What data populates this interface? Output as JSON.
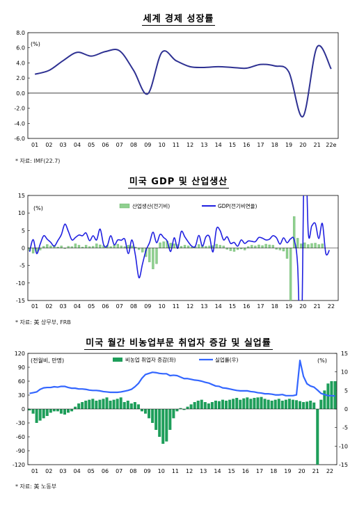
{
  "charts": [
    {
      "title": "세계 경제 성장률",
      "source": "* 자료: IMF(22.7)",
      "unit": "(%)"
    },
    {
      "title": "미국 GDP 및 산업생산",
      "source": "* 자료: 美 상무부, FRB",
      "unit": "(%)"
    },
    {
      "title": "미국 월간 비농업부문 취업자 증감 및 실업률",
      "source": "* 자료: 美 노동부",
      "unit_left": "(전월비, 만명)",
      "unit_right": "(%)"
    }
  ],
  "chart_data": [
    {
      "type": "line",
      "title": "세계 경제 성장률",
      "x": [
        "01",
        "02",
        "03",
        "04",
        "05",
        "06",
        "07",
        "08",
        "09",
        "10",
        "11",
        "12",
        "13",
        "14",
        "15",
        "16",
        "17",
        "18",
        "19",
        "20",
        "21",
        "22e"
      ],
      "series": [
        {
          "name": "",
          "color": "#2e3192",
          "values": [
            2.5,
            3.0,
            4.3,
            5.4,
            4.9,
            5.5,
            5.6,
            3.0,
            -0.1,
            5.4,
            4.3,
            3.5,
            3.4,
            3.5,
            3.4,
            3.3,
            3.8,
            3.6,
            2.8,
            -3.1,
            6.1,
            3.2
          ]
        }
      ],
      "ylim": [
        -6.0,
        8.0
      ],
      "yticks": [
        "8.0",
        "6.0",
        "4.0",
        "2.0",
        "0.0",
        "-2.0",
        "-4.0",
        "-6.0"
      ],
      "grid": false,
      "legend": "none"
    },
    {
      "type": "bar+line",
      "title": "미국 GDP 및 산업생산",
      "x_labels": [
        "01",
        "02",
        "03",
        "04",
        "05",
        "06",
        "07",
        "08",
        "09",
        "10",
        "11",
        "12",
        "13",
        "14",
        "15",
        "16",
        "17",
        "18",
        "19",
        "20",
        "21",
        "22"
      ],
      "ylim": [
        -15,
        15
      ],
      "yticks": [
        "15",
        "10",
        "5",
        "0",
        "-5",
        "-10",
        "-15"
      ],
      "legend": "top-center",
      "series": [
        {
          "name": "산업생산(전기비)",
          "kind": "bar",
          "color": "#8fd08f",
          "values": [
            -0.8,
            -1.5,
            -1.2,
            -0.6,
            0.5,
            1.0,
            0.6,
            0.8,
            0.3,
            0.6,
            -0.2,
            0.5,
            0.4,
            1.2,
            0.8,
            0.3,
            0.8,
            0.4,
            0.5,
            1.2,
            0.9,
            0.7,
            0.8,
            0.4,
            0.9,
            1.1,
            0.6,
            0.4,
            0.8,
            0.6,
            0.3,
            -0.5,
            -1.2,
            -2.5,
            -4.0,
            -6.0,
            -4.5,
            1.5,
            1.8,
            2.0,
            1.4,
            1.2,
            1.0,
            0.5,
            0.8,
            0.6,
            0.3,
            0.4,
            1.0,
            0.8,
            0.5,
            0.6,
            0.7,
            1.1,
            0.8,
            0.6,
            -0.4,
            -0.8,
            -1.0,
            -0.5,
            -0.3,
            -0.6,
            0.4,
            0.8,
            0.6,
            0.9,
            0.7,
            1.1,
            0.9,
            0.8,
            -0.4,
            -0.6,
            -0.9,
            -3.0,
            -15.0,
            9.0,
            2.8,
            1.2,
            1.5,
            1.0,
            1.3,
            1.4,
            1.0,
            1.2
          ],
          "x_start": 2001.0,
          "x_step": 0.25
        },
        {
          "name": "GDP(전기비연율)",
          "kind": "line",
          "color": "#1f1fe0",
          "values": [
            -1.1,
            2.4,
            -1.6,
            1.1,
            3.5,
            2.5,
            1.6,
            0.5,
            2.1,
            3.8,
            6.8,
            4.7,
            2.3,
            3.0,
            3.7,
            3.5,
            4.3,
            2.1,
            3.5,
            2.3,
            5.4,
            0.9,
            0.6,
            3.5,
            0.9,
            2.3,
            2.2,
            2.5,
            -1.6,
            2.3,
            -2.1,
            -8.5,
            -4.6,
            -0.7,
            1.5,
            4.5,
            1.5,
            3.9,
            3.0,
            2.0,
            -1.0,
            2.9,
            -0.1,
            4.7,
            3.2,
            1.7,
            0.5,
            0.5,
            3.6,
            0.5,
            3.2,
            3.2,
            -1.1,
            5.5,
            5.0,
            2.3,
            3.2,
            1.3,
            1.6,
            0.5,
            2.3,
            1.3,
            2.0,
            1.9,
            1.8,
            3.0,
            2.8,
            2.3,
            2.5,
            3.5,
            2.9,
            1.1,
            2.9,
            1.5,
            2.6,
            2.4,
            -5.1,
            -31.2,
            33.8,
            4.5,
            6.3,
            7.0,
            2.7,
            7.0,
            -1.6,
            -0.6
          ],
          "x_start": 2001.0,
          "x_step": 0.25
        }
      ]
    },
    {
      "type": "bar+line",
      "title": "미국 월간 비농업부문 취업자 증감 및 실업률",
      "x_labels": [
        "01",
        "02",
        "03",
        "04",
        "05",
        "06",
        "07",
        "08",
        "09",
        "10",
        "11",
        "12",
        "13",
        "14",
        "15",
        "16",
        "17",
        "18",
        "19",
        "20",
        "21",
        "22"
      ],
      "ylim_left": [
        -120,
        120
      ],
      "yticks_left": [
        "120",
        "90",
        "60",
        "30",
        "0",
        "-30",
        "-60",
        "-90",
        "-120"
      ],
      "ylim_right": [
        -15,
        15
      ],
      "yticks_right": [
        "15",
        "10",
        "5",
        "0",
        "-5",
        "-10",
        "-15"
      ],
      "legend": "top-center",
      "series": [
        {
          "name": "비농업 취업자 증감(좌)",
          "kind": "bar",
          "axis": "left",
          "color": "#1e9e5a",
          "x_start": 2001.0,
          "x_step": 0.25,
          "values": [
            -3,
            -10,
            -30,
            -25,
            -20,
            -15,
            -8,
            -5,
            -5,
            -10,
            -12,
            -8,
            -5,
            5,
            12,
            15,
            18,
            20,
            22,
            18,
            20,
            22,
            25,
            18,
            20,
            22,
            25,
            15,
            18,
            12,
            15,
            10,
            -5,
            -10,
            -20,
            -30,
            -45,
            -60,
            -75,
            -70,
            -45,
            -20,
            -5,
            2,
            -2,
            5,
            10,
            15,
            18,
            20,
            15,
            12,
            15,
            18,
            17,
            20,
            18,
            20,
            22,
            24,
            20,
            23,
            25,
            22,
            24,
            25,
            26,
            22,
            20,
            18,
            20,
            22,
            18,
            20,
            22,
            20,
            19,
            17,
            15,
            16,
            18,
            14,
            -120,
            20,
            40,
            55,
            60,
            60,
            50,
            45,
            40,
            35,
            30
          ]
        },
        {
          "name": "실업률(우)",
          "kind": "line",
          "axis": "right",
          "color": "#3366ff",
          "x_start": 2001.0,
          "x_step": 0.25,
          "values": [
            4.2,
            4.4,
            4.6,
            5.3,
            5.7,
            5.8,
            5.8,
            6.0,
            5.9,
            6.1,
            6.1,
            5.8,
            5.6,
            5.6,
            5.4,
            5.4,
            5.3,
            5.1,
            5.0,
            5.0,
            4.9,
            4.7,
            4.6,
            4.5,
            4.5,
            4.5,
            4.6,
            4.8,
            5.0,
            5.3,
            6.0,
            6.9,
            8.3,
            9.3,
            9.6,
            9.9,
            9.8,
            9.6,
            9.5,
            9.5,
            9.0,
            9.1,
            9.0,
            8.6,
            8.2,
            8.2,
            8.0,
            7.8,
            7.7,
            7.5,
            7.2,
            7.0,
            6.6,
            6.2,
            6.1,
            5.7,
            5.6,
            5.4,
            5.2,
            5.0,
            4.9,
            4.9,
            4.9,
            4.7,
            4.6,
            4.4,
            4.3,
            4.1,
            4.1,
            4.0,
            3.8,
            3.8,
            3.9,
            3.6,
            3.6,
            3.6,
            3.8,
            13.1,
            8.8,
            6.8,
            6.2,
            5.9,
            5.1,
            4.2,
            3.9,
            3.6,
            3.6,
            3.5
          ]
        }
      ]
    }
  ]
}
